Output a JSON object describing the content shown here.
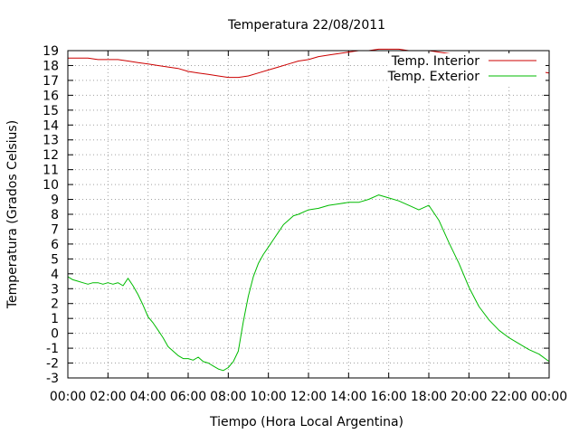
{
  "chart_data": {
    "type": "line",
    "title": "Temperatura 22/08/2011",
    "xlabel": "Tiempo (Hora Local Argentina)",
    "ylabel": "Temperatura (Grados Celsius)",
    "x_tick_labels": [
      "00:00",
      "02:00",
      "04:00",
      "06:00",
      "08:00",
      "10:00",
      "12:00",
      "14:00",
      "16:00",
      "18:00",
      "20:00",
      "22:00",
      "00:00"
    ],
    "xlim": [
      0,
      24
    ],
    "ylim": [
      -3,
      19
    ],
    "y_ticks": [
      -3,
      -2,
      -1,
      0,
      1,
      2,
      3,
      4,
      5,
      6,
      7,
      8,
      9,
      10,
      11,
      12,
      13,
      14,
      15,
      16,
      17,
      18,
      19
    ],
    "grid": true,
    "legend_position": "top-right",
    "series": [
      {
        "name": "Temp. Interior",
        "color": "#cc0000",
        "x": [
          0,
          1,
          1.5,
          2,
          2.5,
          3,
          3.5,
          4,
          4.5,
          5,
          5.5,
          6,
          6.5,
          7,
          7.5,
          8,
          8.5,
          9,
          9.5,
          10,
          10.5,
          11,
          11.5,
          12,
          12.5,
          13,
          13.5,
          14,
          14.5,
          15,
          15.5,
          16,
          16.5,
          17,
          17.5,
          18,
          18.5,
          19,
          19.5,
          20,
          20.5,
          21,
          21.5,
          22,
          22.5,
          23,
          23.5,
          24
        ],
        "y": [
          18.5,
          18.5,
          18.4,
          18.4,
          18.4,
          18.3,
          18.2,
          18.1,
          18.0,
          17.9,
          17.8,
          17.6,
          17.5,
          17.4,
          17.3,
          17.2,
          17.2,
          17.3,
          17.5,
          17.7,
          17.9,
          18.1,
          18.3,
          18.4,
          18.6,
          18.7,
          18.8,
          18.9,
          19.0,
          19.0,
          19.1,
          19.1,
          19.1,
          19.0,
          19.0,
          19.0,
          18.9,
          18.8,
          18.7,
          18.5,
          18.3,
          18.2,
          18.0,
          17.9,
          17.8,
          17.7,
          17.6,
          17.5
        ]
      },
      {
        "name": "Temp. Exterior",
        "color": "#00bb00",
        "x": [
          0,
          0.25,
          0.5,
          0.75,
          1,
          1.25,
          1.5,
          1.75,
          2,
          2.25,
          2.5,
          2.75,
          3,
          3.25,
          3.5,
          3.75,
          4,
          4.25,
          4.5,
          4.75,
          5,
          5.25,
          5.5,
          5.75,
          6,
          6.25,
          6.5,
          6.75,
          7,
          7.25,
          7.5,
          7.75,
          8,
          8.25,
          8.5,
          8.75,
          9,
          9.25,
          9.5,
          9.75,
          10,
          10.25,
          10.5,
          10.75,
          11,
          11.25,
          11.5,
          12,
          12.5,
          13,
          13.5,
          14,
          14.5,
          15,
          15.5,
          16,
          16.5,
          17,
          17.5,
          18,
          18.5,
          19,
          19.5,
          20,
          20.5,
          21,
          21.5,
          22,
          22.5,
          23,
          23.5,
          24
        ],
        "y": [
          3.8,
          3.6,
          3.5,
          3.4,
          3.3,
          3.4,
          3.4,
          3.3,
          3.4,
          3.3,
          3.4,
          3.2,
          3.7,
          3.2,
          2.6,
          1.9,
          1.1,
          0.7,
          0.2,
          -0.3,
          -0.9,
          -1.2,
          -1.5,
          -1.7,
          -1.7,
          -1.8,
          -1.6,
          -1.9,
          -2.0,
          -2.2,
          -2.4,
          -2.5,
          -2.3,
          -1.9,
          -1.2,
          0.8,
          2.5,
          3.8,
          4.7,
          5.3,
          5.8,
          6.3,
          6.8,
          7.3,
          7.6,
          7.9,
          8.0,
          8.3,
          8.4,
          8.6,
          8.7,
          8.8,
          8.8,
          9.0,
          9.3,
          9.1,
          8.9,
          8.6,
          8.3,
          8.6,
          7.6,
          6.1,
          4.7,
          3.1,
          1.8,
          0.9,
          0.2,
          -0.3,
          -0.7,
          -1.1,
          -1.4,
          -1.9
        ]
      }
    ]
  }
}
